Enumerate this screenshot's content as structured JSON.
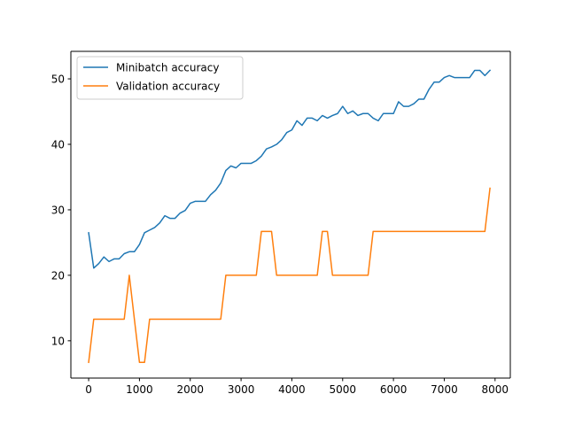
{
  "chart_data": {
    "type": "line",
    "xlim": [
      -350,
      8300
    ],
    "ylim": [
      4.3,
      54.2
    ],
    "xticks": [
      0,
      1000,
      2000,
      3000,
      4000,
      5000,
      6000,
      7000,
      8000
    ],
    "xtick_labels": [
      "0",
      "1000",
      "2000",
      "3000",
      "4000",
      "5000",
      "6000",
      "7000",
      "8000"
    ],
    "yticks": [
      10,
      20,
      30,
      40,
      50
    ],
    "ytick_labels": [
      "10",
      "20",
      "30",
      "40",
      "50"
    ],
    "grid": false,
    "legend_position": "upper-left",
    "series": [
      {
        "name": "Minibatch accuracy",
        "color": "#1f77b4",
        "x": [
          0,
          100,
          200,
          300,
          400,
          500,
          600,
          700,
          800,
          900,
          1000,
          1100,
          1200,
          1300,
          1400,
          1500,
          1600,
          1700,
          1800,
          1900,
          2000,
          2100,
          2200,
          2300,
          2400,
          2500,
          2600,
          2700,
          2800,
          2900,
          3000,
          3100,
          3200,
          3300,
          3400,
          3500,
          3600,
          3700,
          3800,
          3900,
          4000,
          4100,
          4200,
          4300,
          4400,
          4500,
          4600,
          4700,
          4800,
          4900,
          5000,
          5100,
          5200,
          5300,
          5400,
          5500,
          5600,
          5700,
          5800,
          5900,
          6000,
          6100,
          6200,
          6300,
          6400,
          6500,
          6600,
          6700,
          6800,
          6900,
          7000,
          7100,
          7200,
          7300,
          7400,
          7500,
          7600,
          7700,
          7800,
          7900
        ],
        "y": [
          26.5,
          21.1,
          21.8,
          22.8,
          22.1,
          22.5,
          22.5,
          23.3,
          23.6,
          23.6,
          24.7,
          26.5,
          26.9,
          27.3,
          28.0,
          29.1,
          28.7,
          28.7,
          29.5,
          29.9,
          31.0,
          31.3,
          31.3,
          31.3,
          32.3,
          33.0,
          34.1,
          36.0,
          36.7,
          36.4,
          37.1,
          37.1,
          37.1,
          37.5,
          38.2,
          39.3,
          39.6,
          40.0,
          40.7,
          41.8,
          42.2,
          43.6,
          42.9,
          44.0,
          44.0,
          43.6,
          44.4,
          44.0,
          44.4,
          44.7,
          45.8,
          44.7,
          45.1,
          44.4,
          44.7,
          44.7,
          44.0,
          43.6,
          44.7,
          44.7,
          44.7,
          46.5,
          45.8,
          45.8,
          46.2,
          46.9,
          46.9,
          48.4,
          49.5,
          49.5,
          50.2,
          50.5,
          50.2,
          50.2,
          50.2,
          50.2,
          51.3,
          51.3,
          50.5,
          51.3
        ]
      },
      {
        "name": "Validation accuracy",
        "color": "#ff7f0e",
        "x": [
          0,
          100,
          200,
          300,
          400,
          500,
          600,
          700,
          800,
          900,
          1000,
          1100,
          1200,
          1300,
          1400,
          1500,
          1600,
          1700,
          1800,
          1900,
          2000,
          2100,
          2200,
          2300,
          2400,
          2500,
          2600,
          2700,
          2800,
          2900,
          3000,
          3100,
          3200,
          3300,
          3400,
          3500,
          3600,
          3700,
          3800,
          3900,
          4000,
          4100,
          4200,
          4300,
          4400,
          4500,
          4600,
          4700,
          4800,
          4900,
          5000,
          5100,
          5200,
          5300,
          5400,
          5500,
          5600,
          5700,
          5800,
          5900,
          6000,
          6100,
          6200,
          6300,
          6400,
          6500,
          6600,
          6700,
          6800,
          6900,
          7000,
          7100,
          7200,
          7300,
          7400,
          7500,
          7600,
          7700,
          7800,
          7900
        ],
        "y": [
          6.7,
          13.3,
          13.3,
          13.3,
          13.3,
          13.3,
          13.3,
          13.3,
          20.0,
          13.3,
          6.7,
          6.7,
          13.3,
          13.3,
          13.3,
          13.3,
          13.3,
          13.3,
          13.3,
          13.3,
          13.3,
          13.3,
          13.3,
          13.3,
          13.3,
          13.3,
          13.3,
          20.0,
          20.0,
          20.0,
          20.0,
          20.0,
          20.0,
          20.0,
          26.7,
          26.7,
          26.7,
          20.0,
          20.0,
          20.0,
          20.0,
          20.0,
          20.0,
          20.0,
          20.0,
          20.0,
          26.7,
          26.7,
          20.0,
          20.0,
          20.0,
          20.0,
          20.0,
          20.0,
          20.0,
          20.0,
          26.7,
          26.7,
          26.7,
          26.7,
          26.7,
          26.7,
          26.7,
          26.7,
          26.7,
          26.7,
          26.7,
          26.7,
          26.7,
          26.7,
          26.7,
          26.7,
          26.7,
          26.7,
          26.7,
          26.7,
          26.7,
          26.7,
          26.7,
          33.3
        ]
      }
    ]
  }
}
